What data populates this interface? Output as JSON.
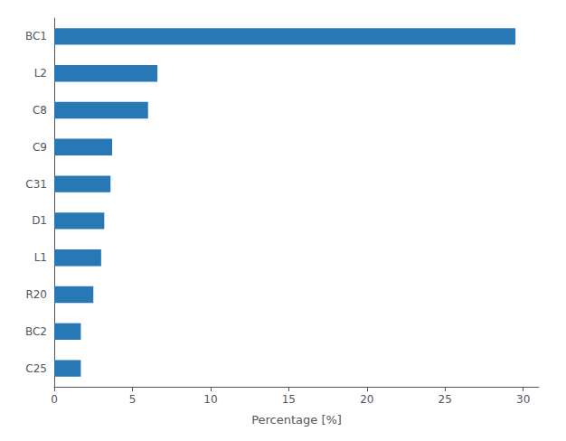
{
  "chart_data": {
    "type": "bar",
    "orientation": "horizontal",
    "categories": [
      "BC1",
      "L2",
      "C8",
      "C9",
      "C31",
      "D1",
      "L1",
      "R20",
      "BC2",
      "C25"
    ],
    "values": [
      29.5,
      6.6,
      6.0,
      3.7,
      3.6,
      3.2,
      3.0,
      2.5,
      1.7,
      1.7
    ],
    "color": "#2878b5",
    "xlabel": "Percentage [%]",
    "xlim": [
      0,
      31
    ],
    "xticks": [
      0,
      5,
      10,
      15,
      20,
      25,
      30
    ],
    "grid": false
  }
}
